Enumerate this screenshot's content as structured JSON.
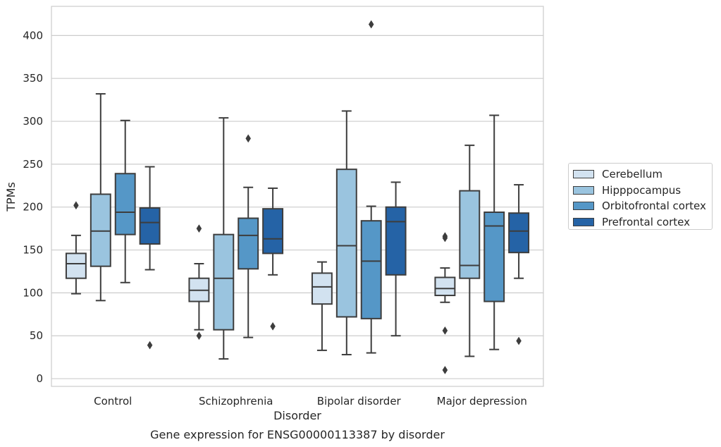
{
  "chart_data": {
    "type": "box",
    "title": "Gene expression for ENSG00000113387 by disorder",
    "xlabel": "Disorder",
    "ylabel": "TPMs",
    "ylim": [
      -9,
      434
    ],
    "yticks": [
      0,
      50,
      100,
      150,
      200,
      250,
      300,
      350,
      400
    ],
    "categories": [
      "Control",
      "Schizophrenia",
      "Bipolar disorder",
      "Major depression"
    ],
    "grid": "horizontal",
    "legend_position": "right",
    "series": [
      {
        "name": "Cerebellum",
        "color": "#d2e2f0",
        "boxes": [
          {
            "whisker_low": 99,
            "q1": 117,
            "median": 134,
            "q3": 146,
            "whisker_high": 167,
            "outliers": [
              202
            ]
          },
          {
            "whisker_low": 57,
            "q1": 90,
            "median": 103,
            "q3": 117,
            "whisker_high": 134,
            "outliers": [
              50,
              175
            ]
          },
          {
            "whisker_low": 33,
            "q1": 87,
            "median": 107,
            "q3": 123,
            "whisker_high": 136,
            "outliers": []
          },
          {
            "whisker_low": 89,
            "q1": 97,
            "median": 105,
            "q3": 118,
            "whisker_high": 129,
            "outliers": [
              10,
              56,
              164,
              166
            ]
          }
        ]
      },
      {
        "name": "Hipppocampus",
        "color": "#9ac4df",
        "boxes": [
          {
            "whisker_low": 91,
            "q1": 131,
            "median": 172,
            "q3": 215,
            "whisker_high": 332,
            "outliers": []
          },
          {
            "whisker_low": 23,
            "q1": 57,
            "median": 117,
            "q3": 168,
            "whisker_high": 304,
            "outliers": []
          },
          {
            "whisker_low": 28,
            "q1": 72,
            "median": 155,
            "q3": 244,
            "whisker_high": 312,
            "outliers": []
          },
          {
            "whisker_low": 26,
            "q1": 117,
            "median": 132,
            "q3": 219,
            "whisker_high": 272,
            "outliers": []
          }
        ]
      },
      {
        "name": "Orbitofrontal cortex",
        "color": "#5597c7",
        "boxes": [
          {
            "whisker_low": 112,
            "q1": 168,
            "median": 194,
            "q3": 239,
            "whisker_high": 301,
            "outliers": []
          },
          {
            "whisker_low": 48,
            "q1": 128,
            "median": 167,
            "q3": 187,
            "whisker_high": 223,
            "outliers": [
              280
            ]
          },
          {
            "whisker_low": 30,
            "q1": 70,
            "median": 137,
            "q3": 184,
            "whisker_high": 201,
            "outliers": [
              413
            ]
          },
          {
            "whisker_low": 34,
            "q1": 90,
            "median": 178,
            "q3": 194,
            "whisker_high": 307,
            "outliers": []
          }
        ]
      },
      {
        "name": "Prefrontal cortex",
        "color": "#2563a6",
        "boxes": [
          {
            "whisker_low": 127,
            "q1": 157,
            "median": 182,
            "q3": 199,
            "whisker_high": 247,
            "outliers": [
              39
            ]
          },
          {
            "whisker_low": 121,
            "q1": 146,
            "median": 163,
            "q3": 198,
            "whisker_high": 222,
            "outliers": [
              61
            ]
          },
          {
            "whisker_low": 50,
            "q1": 121,
            "median": 183,
            "q3": 200,
            "whisker_high": 229,
            "outliers": []
          },
          {
            "whisker_low": 117,
            "q1": 147,
            "median": 172,
            "q3": 193,
            "whisker_high": 226,
            "outliers": [
              44
            ]
          }
        ]
      }
    ]
  }
}
